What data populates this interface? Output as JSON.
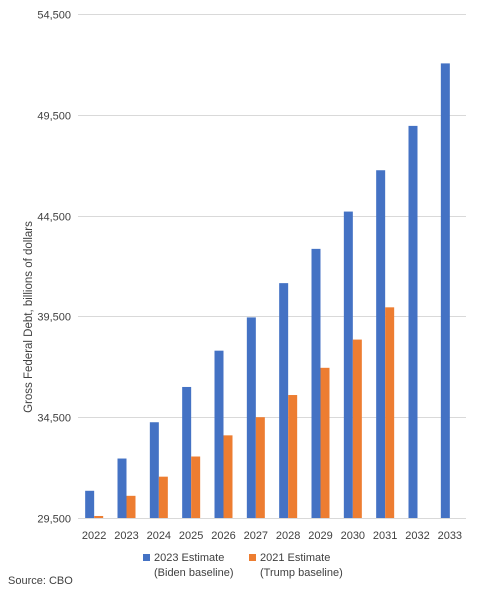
{
  "chart_data": {
    "type": "bar",
    "title": "",
    "xlabel": "",
    "ylabel": "Gross Federal Debt, billions of dollars",
    "categories": [
      "2022",
      "2023",
      "2024",
      "2025",
      "2026",
      "2027",
      "2028",
      "2029",
      "2030",
      "2031",
      "2032",
      "2033"
    ],
    "ylim": [
      29500,
      54500
    ],
    "yticks": [
      29500,
      34500,
      39500,
      44500,
      49500,
      54500
    ],
    "ytick_labels": [
      "29,500",
      "34,500",
      "39,500",
      "44,500",
      "49,500",
      "54,500"
    ],
    "grid": true,
    "legend_position": "bottom",
    "series": [
      {
        "name": "2023 Estimate (Biden baseline)",
        "legend_lines": [
          "2023 Estimate",
          "(Biden baseline)"
        ],
        "color": "#4472c4",
        "values": [
          30850,
          32450,
          34250,
          36000,
          37800,
          39450,
          41150,
          42850,
          44700,
          46750,
          48950,
          52050
        ]
      },
      {
        "name": "2021 Estimate (Trump baseline)",
        "legend_lines": [
          "2021 Estimate",
          "(Trump baseline)"
        ],
        "color": "#ed7d31",
        "values": [
          29600,
          30600,
          31550,
          32550,
          33600,
          34500,
          35600,
          36950,
          38350,
          39950,
          null,
          null
        ]
      }
    ],
    "source": "Source: CBO"
  }
}
